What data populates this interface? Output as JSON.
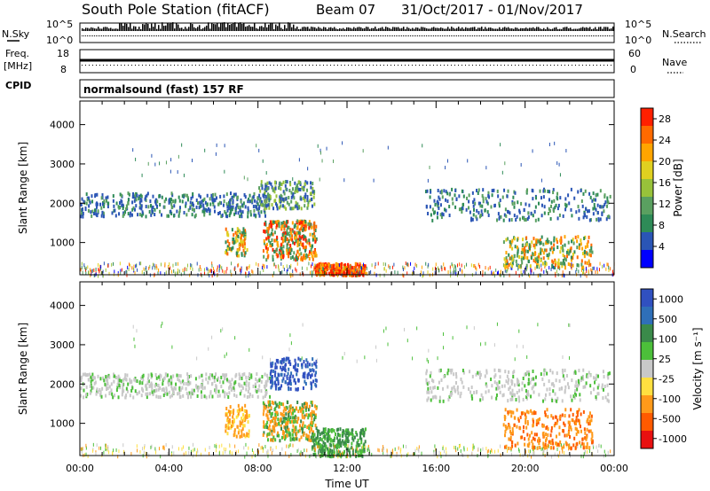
{
  "header": {
    "station": "South Pole Station (fitACF)",
    "beam": "Beam 07",
    "date_range": "31/Oct/2017 - 01/Nov/2017"
  },
  "side_labels": {
    "nsky": "N.Sky",
    "nsearch": "N.Search",
    "freq_line1": "Freq.",
    "freq_line2": "[MHz]",
    "nave": "Nave",
    "cpid": "CPID"
  },
  "cpid_text": "normalsound (fast) 157 RF",
  "strip_ticks": {
    "noise_left": [
      "10^5",
      "10^0"
    ],
    "noise_right": [
      "10^5",
      "10^0"
    ],
    "freq_left": [
      "18",
      "8"
    ],
    "freq_right": [
      "60",
      "0"
    ]
  },
  "colors": {
    "power_scale": [
      "#0000ff",
      "#2a55b5",
      "#2e8b57",
      "#5aa060",
      "#98c23a",
      "#e0d020",
      "#ffa500",
      "#ff6a00",
      "#ff2000"
    ],
    "velocity_scale": [
      "#3050c0",
      "#2f6fb8",
      "#3a8a4a",
      "#4cbf3a",
      "#c8c8c8",
      "#ffe040",
      "#ff9a1a",
      "#ff5a00",
      "#e81010"
    ]
  },
  "chart_data": [
    {
      "type": "heatmap",
      "name": "power",
      "ylabel": "Slant Range [km]",
      "xlabel": "Time UT",
      "x_ticks": [
        "00:00",
        "04:00",
        "08:00",
        "12:00",
        "16:00",
        "20:00",
        "00:00"
      ],
      "xlim_hours": [
        0,
        24
      ],
      "y_ticks": [
        "1000",
        "2000",
        "3000",
        "4000"
      ],
      "ylim_km": [
        180,
        4600
      ],
      "colorbar": {
        "label": "Power [dB]",
        "ticks": [
          "4",
          "8",
          "12",
          "16",
          "20",
          "24",
          "28"
        ],
        "range": [
          0,
          30
        ]
      }
    },
    {
      "type": "heatmap",
      "name": "velocity",
      "ylabel": "Slant Range [km]",
      "xlabel": "Time UT",
      "x_ticks": [
        "00:00",
        "04:00",
        "08:00",
        "12:00",
        "16:00",
        "20:00",
        "00:00"
      ],
      "xlim_hours": [
        0,
        24
      ],
      "y_ticks": [
        "1000",
        "2000",
        "3000",
        "4000"
      ],
      "ylim_km": [
        180,
        4600
      ],
      "colorbar": {
        "label": "Velocity [m s⁻¹]",
        "ticks": [
          "1000",
          "500",
          "100",
          "25",
          "-25",
          "-100",
          "-500",
          "-1000"
        ]
      }
    }
  ]
}
